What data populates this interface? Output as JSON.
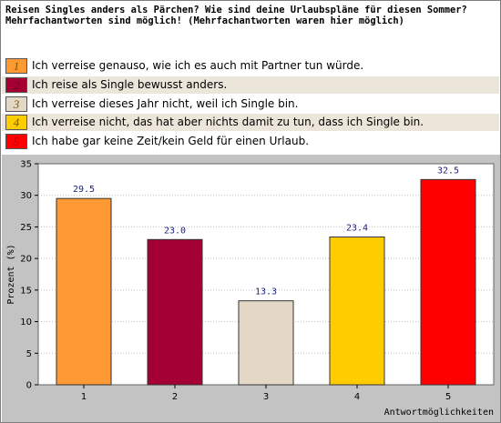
{
  "question": "Reisen Singles anders als Pärchen? Wie sind deine Urlaubspläne für diesen Sommer? Mehrfachantworten sind möglich! (Mehrfachantworten waren hier möglich)",
  "legend": [
    {
      "num": "1",
      "text": "Ich verreise genauso, wie ich es auch mit Partner tun würde.",
      "color": "#ff9933",
      "row_bg": "#ffffff"
    },
    {
      "num": "2",
      "text": "Ich reise als Single bewusst anders.",
      "color": "#a50034",
      "row_bg": "#ece5da"
    },
    {
      "num": "3",
      "text": "Ich verreise dieses Jahr nicht, weil ich Single bin.",
      "color": "#e2d8c5",
      "row_bg": "#ffffff"
    },
    {
      "num": "4",
      "text": "Ich verreise nicht, das hat aber nichts damit zu tun, dass ich Single bin.",
      "color": "#ffcc00",
      "row_bg": "#ece5da"
    },
    {
      "num": "5",
      "text": "Ich habe gar keine Zeit/kein Geld für einen Urlaub.",
      "color": "#ff0000",
      "row_bg": "#ffffff"
    }
  ],
  "chart_data": {
    "type": "bar",
    "categories": [
      "1",
      "2",
      "3",
      "4",
      "5"
    ],
    "values": [
      29.5,
      23.0,
      13.3,
      23.4,
      32.5
    ],
    "value_labels": [
      "29.5",
      "23.0",
      "13.3",
      "23.4",
      "32.5"
    ],
    "colors": [
      "#ff9933",
      "#a50034",
      "#e2d8c5",
      "#ffcc00",
      "#ff0000"
    ],
    "ylabel": "Prozent (%)",
    "xlabel": "Antwortmöglichkeiten",
    "ylim": [
      0,
      35
    ],
    "yticks": [
      0,
      5,
      10,
      15,
      20,
      25,
      30,
      35
    ],
    "grid": true
  }
}
